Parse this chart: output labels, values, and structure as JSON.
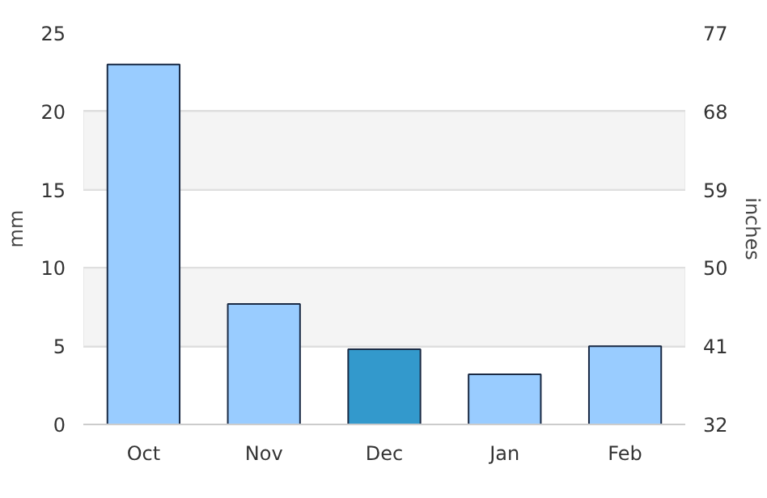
{
  "chart_data": {
    "type": "bar",
    "categories": [
      "Oct",
      "Nov",
      "Dec",
      "Jan",
      "Feb"
    ],
    "values": [
      23,
      7.7,
      4.8,
      3.2,
      5.0
    ],
    "colors": [
      "#99ccff",
      "#99ccff",
      "#3399cc",
      "#99ccff",
      "#99ccff"
    ],
    "ylabel": "mm",
    "y2label": "inches",
    "ylim": [
      0,
      25
    ],
    "yticks": [
      0,
      5,
      10,
      15,
      20,
      25
    ],
    "y2lim": [
      32,
      77
    ],
    "y2ticks": [
      32,
      41,
      50,
      59,
      68,
      77
    ],
    "grid": "y",
    "bands": [
      {
        "axis": "y",
        "from": 5,
        "to": 10,
        "color": "#f4f4f4"
      },
      {
        "axis": "y",
        "from": 15,
        "to": 20,
        "color": "#f4f4f4"
      }
    ]
  }
}
